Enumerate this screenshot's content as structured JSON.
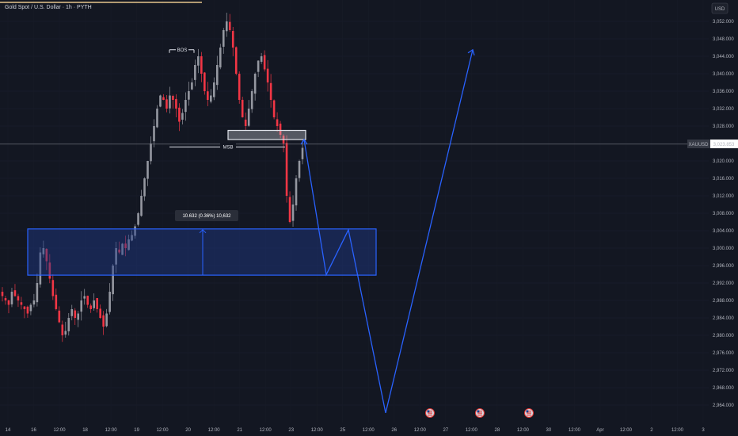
{
  "header": {
    "symbol_title": "Gold Spot / U.S. Dollar · 1h · PYTH"
  },
  "price_scale": {
    "currency": "USD",
    "ticks": [
      "3,052.000",
      "3,048.000",
      "3,044.000",
      "3,040.000",
      "3,036.000",
      "3,032.000",
      "3,028.000",
      "3,020.000",
      "3,016.000",
      "3,012.000",
      "3,008.000",
      "3,004.000",
      "3,000.000",
      "2,996.000",
      "2,992.000",
      "2,988.000",
      "2,984.000",
      "2,980.000",
      "2,976.000",
      "2,972.000",
      "2,968.000",
      "2,964.000"
    ],
    "symbol_label": "XAUUSD",
    "last_price": "3,023.853"
  },
  "time_scale": {
    "ticks": [
      "14",
      "16",
      "12:00",
      "18",
      "12:00",
      "19",
      "12:00",
      "20",
      "12:00",
      "21",
      "12:00",
      "23",
      "12:00",
      "25",
      "12:00",
      "26",
      "12:00",
      "27",
      "12:00",
      "28",
      "12:00",
      "30",
      "12:00",
      "Apr",
      "12:00",
      "2",
      "12:00",
      "3"
    ]
  },
  "annotations": {
    "bos": "BOS",
    "msb": "MSB",
    "measure_label": "10.632 (0.36%) 10,632"
  },
  "colors": {
    "background": "#131722",
    "up_candle": "#9598a1",
    "down_candle": "#f23645",
    "zone_border": "#2962ff",
    "zone_fill": "#1e3a8a",
    "projection": "#2962ff",
    "top_line": "#e8c58c"
  },
  "chart_data": {
    "type": "candlestick",
    "symbol": "XAUUSD",
    "timeframe": "1h",
    "last_price": 3023.853,
    "ylim": [
      2962,
      3056
    ],
    "annotations": [
      {
        "label": "BOS",
        "price": 3045.5
      },
      {
        "label": "MSB",
        "price": 3023.2
      },
      {
        "label": "10.632 (0.36%) 10,632",
        "price_from": 2993.8,
        "price_to": 3004.4
      }
    ],
    "zones": [
      {
        "type": "demand",
        "price_top": 3004.4,
        "price_bottom": 2993.8
      },
      {
        "type": "supply",
        "price_top": 3027.0,
        "price_bottom": 3024.9
      }
    ],
    "projection_path": [
      3024.9,
      2993.9,
      3004.2,
      2962.2,
      3045.5
    ],
    "closes_approx": [
      2989,
      2988,
      2987,
      2990,
      2989,
      2988,
      2987,
      2986,
      2985,
      2987,
      2988,
      2992,
      2999,
      3000,
      2997,
      2993,
      2989,
      2986,
      2983,
      2980,
      2981,
      2984,
      2986,
      2984,
      2985,
      2988,
      2989,
      2987,
      2986,
      2988,
      2986,
      2984,
      2982,
      2985,
      2990,
      2996,
      3000,
      2999,
      3001,
      3000,
      3002,
      3003,
      3005,
      3008,
      3012,
      3016,
      3020,
      3024,
      3028,
      3032,
      3035,
      3034,
      3032,
      3035,
      3034,
      3032,
      3029,
      3031,
      3034,
      3036,
      3038,
      3042,
      3044,
      3040,
      3036,
      3034,
      3035,
      3038,
      3042,
      3046,
      3050,
      3052,
      3050,
      3046,
      3040,
      3034,
      3030,
      3028,
      3032,
      3036,
      3040,
      3043,
      3044,
      3041,
      3038,
      3034,
      3030,
      3028,
      3026,
      3024,
      3012,
      3006,
      3010,
      3016,
      3020,
      3023
    ]
  }
}
